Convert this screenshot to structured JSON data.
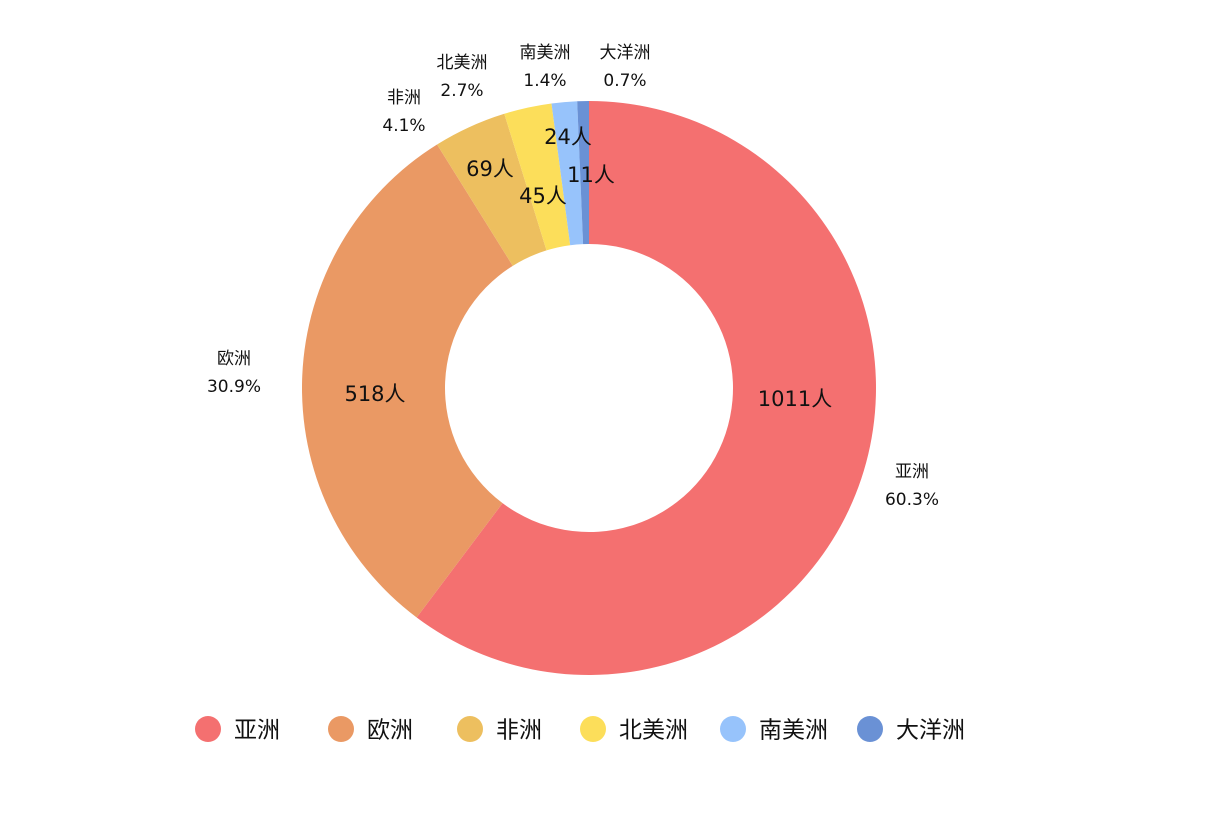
{
  "chart_data": {
    "type": "donut",
    "categories": [
      "亚洲",
      "欧洲",
      "非洲",
      "北美洲",
      "南美洲",
      "大洋洲"
    ],
    "values": [
      1011,
      518,
      69,
      45,
      24,
      11
    ],
    "value_labels": [
      "1011人",
      "518人",
      "69人",
      "45人",
      "24人",
      "11人"
    ],
    "percent_labels": [
      "60.3%",
      "30.9%",
      "4.1%",
      "2.7%",
      "1.4%",
      "0.7%"
    ],
    "colors": [
      "#f47070",
      "#ea9964",
      "#edbf5f",
      "#fcde5a",
      "#97c3fb",
      "#6a91d5"
    ]
  }
}
